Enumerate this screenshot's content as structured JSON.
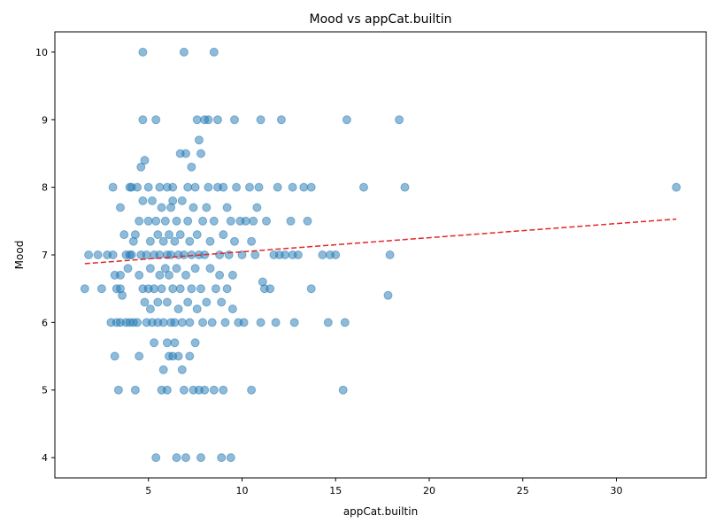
{
  "chart_data": {
    "type": "scatter",
    "title": "Mood vs appCat.builtin",
    "xlabel": "appCat.builtin",
    "ylabel": "Mood",
    "xlim": [
      0.0,
      34.8
    ],
    "ylim": [
      3.7,
      10.3
    ],
    "xticks": [
      5,
      10,
      15,
      20,
      25,
      30
    ],
    "yticks": [
      4,
      5,
      6,
      7,
      8,
      9,
      10
    ],
    "grid": false,
    "legend": "none",
    "point_color": "#1f77b4",
    "trend_color": "#e32626",
    "trendline": {
      "x": [
        1.6,
        33.2
      ],
      "y": [
        6.87,
        7.53
      ],
      "style": "dashed"
    },
    "points": [
      [
        1.6,
        6.5
      ],
      [
        1.8,
        7.0
      ],
      [
        2.3,
        7.0
      ],
      [
        2.5,
        6.5
      ],
      [
        2.8,
        7.0
      ],
      [
        3.0,
        6.0
      ],
      [
        3.1,
        8.0
      ],
      [
        3.1,
        7.0
      ],
      [
        3.2,
        6.7
      ],
      [
        3.2,
        5.5
      ],
      [
        3.3,
        6.5
      ],
      [
        3.3,
        6.0
      ],
      [
        3.4,
        5.0
      ],
      [
        3.5,
        6.7
      ],
      [
        3.5,
        6.5
      ],
      [
        3.5,
        6.0
      ],
      [
        3.5,
        7.7
      ],
      [
        3.6,
        6.4
      ],
      [
        3.7,
        7.3
      ],
      [
        3.8,
        7.0
      ],
      [
        3.8,
        6.0
      ],
      [
        3.9,
        6.8
      ],
      [
        4.0,
        8.0
      ],
      [
        4.0,
        7.0
      ],
      [
        4.0,
        6.0
      ],
      [
        4.1,
        8.0
      ],
      [
        4.1,
        7.0
      ],
      [
        4.2,
        7.2
      ],
      [
        4.2,
        6.0
      ],
      [
        4.3,
        5.0
      ],
      [
        4.3,
        7.3
      ],
      [
        4.4,
        6.0
      ],
      [
        4.4,
        8.0
      ],
      [
        4.5,
        5.5
      ],
      [
        4.5,
        6.7
      ],
      [
        4.5,
        7.5
      ],
      [
        4.6,
        7.0
      ],
      [
        4.6,
        8.3
      ],
      [
        4.7,
        9.0
      ],
      [
        4.7,
        6.5
      ],
      [
        4.7,
        7.8
      ],
      [
        4.7,
        10.0
      ],
      [
        4.8,
        8.4
      ],
      [
        4.8,
        6.3
      ],
      [
        4.9,
        7.0
      ],
      [
        4.9,
        6.0
      ],
      [
        5.0,
        6.5
      ],
      [
        5.0,
        7.5
      ],
      [
        5.0,
        8.0
      ],
      [
        5.1,
        6.2
      ],
      [
        5.1,
        6.8
      ],
      [
        5.1,
        7.2
      ],
      [
        5.2,
        7.8
      ],
      [
        5.2,
        6.0
      ],
      [
        5.3,
        5.7
      ],
      [
        5.3,
        7.0
      ],
      [
        5.3,
        6.5
      ],
      [
        5.4,
        7.5
      ],
      [
        5.4,
        9.0
      ],
      [
        5.4,
        4.0
      ],
      [
        5.5,
        6.3
      ],
      [
        5.5,
        7.3
      ],
      [
        5.5,
        6.0
      ],
      [
        5.6,
        8.0
      ],
      [
        5.6,
        6.7
      ],
      [
        5.6,
        7.0
      ],
      [
        5.7,
        5.0
      ],
      [
        5.7,
        7.7
      ],
      [
        5.7,
        6.5
      ],
      [
        5.8,
        5.3
      ],
      [
        5.8,
        7.2
      ],
      [
        5.8,
        6.0
      ],
      [
        5.9,
        7.5
      ],
      [
        5.9,
        6.8
      ],
      [
        6.0,
        5.7
      ],
      [
        6.0,
        5.0
      ],
      [
        6.0,
        7.0
      ],
      [
        6.0,
        8.0
      ],
      [
        6.0,
        6.3
      ],
      [
        6.1,
        5.5
      ],
      [
        6.1,
        7.3
      ],
      [
        6.1,
        6.7
      ],
      [
        6.2,
        7.7
      ],
      [
        6.2,
        6.0
      ],
      [
        6.2,
        7.0
      ],
      [
        6.3,
        5.5
      ],
      [
        6.3,
        7.8
      ],
      [
        6.3,
        6.5
      ],
      [
        6.3,
        8.0
      ],
      [
        6.4,
        5.7
      ],
      [
        6.4,
        7.2
      ],
      [
        6.4,
        6.0
      ],
      [
        6.5,
        4.0
      ],
      [
        6.5,
        7.5
      ],
      [
        6.5,
        6.8
      ],
      [
        6.6,
        5.5
      ],
      [
        6.6,
        7.0
      ],
      [
        6.6,
        6.2
      ],
      [
        6.7,
        8.5
      ],
      [
        6.7,
        7.3
      ],
      [
        6.7,
        6.5
      ],
      [
        6.8,
        5.3
      ],
      [
        6.8,
        7.8
      ],
      [
        6.8,
        6.0
      ],
      [
        6.9,
        5.0
      ],
      [
        6.9,
        10.0
      ],
      [
        6.9,
        7.0
      ],
      [
        7.0,
        8.5
      ],
      [
        7.0,
        6.7
      ],
      [
        7.0,
        4.0
      ],
      [
        7.1,
        7.5
      ],
      [
        7.1,
        6.3
      ],
      [
        7.1,
        8.0
      ],
      [
        7.2,
        5.5
      ],
      [
        7.2,
        7.2
      ],
      [
        7.2,
        6.0
      ],
      [
        7.3,
        8.3
      ],
      [
        7.3,
        7.0
      ],
      [
        7.3,
        6.5
      ],
      [
        7.4,
        5.0
      ],
      [
        7.4,
        7.7
      ],
      [
        7.5,
        5.7
      ],
      [
        7.5,
        6.8
      ],
      [
        7.5,
        8.0
      ],
      [
        7.6,
        9.0
      ],
      [
        7.6,
        6.2
      ],
      [
        7.6,
        7.3
      ],
      [
        7.7,
        8.7
      ],
      [
        7.7,
        5.0
      ],
      [
        7.7,
        7.0
      ],
      [
        7.8,
        4.0
      ],
      [
        7.8,
        8.5
      ],
      [
        7.8,
        6.5
      ],
      [
        7.9,
        7.5
      ],
      [
        7.9,
        6.0
      ],
      [
        8.0,
        9.0
      ],
      [
        8.0,
        5.0
      ],
      [
        8.0,
        7.0
      ],
      [
        8.1,
        7.7
      ],
      [
        8.1,
        6.3
      ],
      [
        8.2,
        9.0
      ],
      [
        8.2,
        8.0
      ],
      [
        8.3,
        6.8
      ],
      [
        8.3,
        7.2
      ],
      [
        8.4,
        6.0
      ],
      [
        8.5,
        10.0
      ],
      [
        8.5,
        5.0
      ],
      [
        8.5,
        7.5
      ],
      [
        8.6,
        6.5
      ],
      [
        8.7,
        8.0
      ],
      [
        8.7,
        9.0
      ],
      [
        8.8,
        6.7
      ],
      [
        8.8,
        7.0
      ],
      [
        8.9,
        4.0
      ],
      [
        8.9,
        6.3
      ],
      [
        9.0,
        5.0
      ],
      [
        9.0,
        7.3
      ],
      [
        9.0,
        8.0
      ],
      [
        9.1,
        6.0
      ],
      [
        9.2,
        7.7
      ],
      [
        9.2,
        6.5
      ],
      [
        9.3,
        7.0
      ],
      [
        9.4,
        4.0
      ],
      [
        9.4,
        7.5
      ],
      [
        9.5,
        6.7
      ],
      [
        9.5,
        6.2
      ],
      [
        9.6,
        9.0
      ],
      [
        9.6,
        7.2
      ],
      [
        9.7,
        8.0
      ],
      [
        9.8,
        6.0
      ],
      [
        9.9,
        7.5
      ],
      [
        10.0,
        7.0
      ],
      [
        10.1,
        6.0
      ],
      [
        10.2,
        7.5
      ],
      [
        10.4,
        8.0
      ],
      [
        10.5,
        5.0
      ],
      [
        10.5,
        7.2
      ],
      [
        10.6,
        7.5
      ],
      [
        10.7,
        7.0
      ],
      [
        10.8,
        7.7
      ],
      [
        10.9,
        8.0
      ],
      [
        11.0,
        9.0
      ],
      [
        11.0,
        6.0
      ],
      [
        11.1,
        6.6
      ],
      [
        11.2,
        6.5
      ],
      [
        11.3,
        7.5
      ],
      [
        11.5,
        6.5
      ],
      [
        11.7,
        7.0
      ],
      [
        11.8,
        6.0
      ],
      [
        11.9,
        8.0
      ],
      [
        12.0,
        7.0
      ],
      [
        12.1,
        9.0
      ],
      [
        12.3,
        7.0
      ],
      [
        12.6,
        7.5
      ],
      [
        12.7,
        8.0
      ],
      [
        12.7,
        7.0
      ],
      [
        12.8,
        6.0
      ],
      [
        13.0,
        7.0
      ],
      [
        13.3,
        8.0
      ],
      [
        13.5,
        7.5
      ],
      [
        13.7,
        8.0
      ],
      [
        13.7,
        6.5
      ],
      [
        14.3,
        7.0
      ],
      [
        14.6,
        6.0
      ],
      [
        14.7,
        7.0
      ],
      [
        15.0,
        7.0
      ],
      [
        15.4,
        5.0
      ],
      [
        15.5,
        6.0
      ],
      [
        15.6,
        9.0
      ],
      [
        16.5,
        8.0
      ],
      [
        17.8,
        6.4
      ],
      [
        17.9,
        7.0
      ],
      [
        18.4,
        9.0
      ],
      [
        18.7,
        8.0
      ],
      [
        33.2,
        8.0
      ]
    ]
  }
}
